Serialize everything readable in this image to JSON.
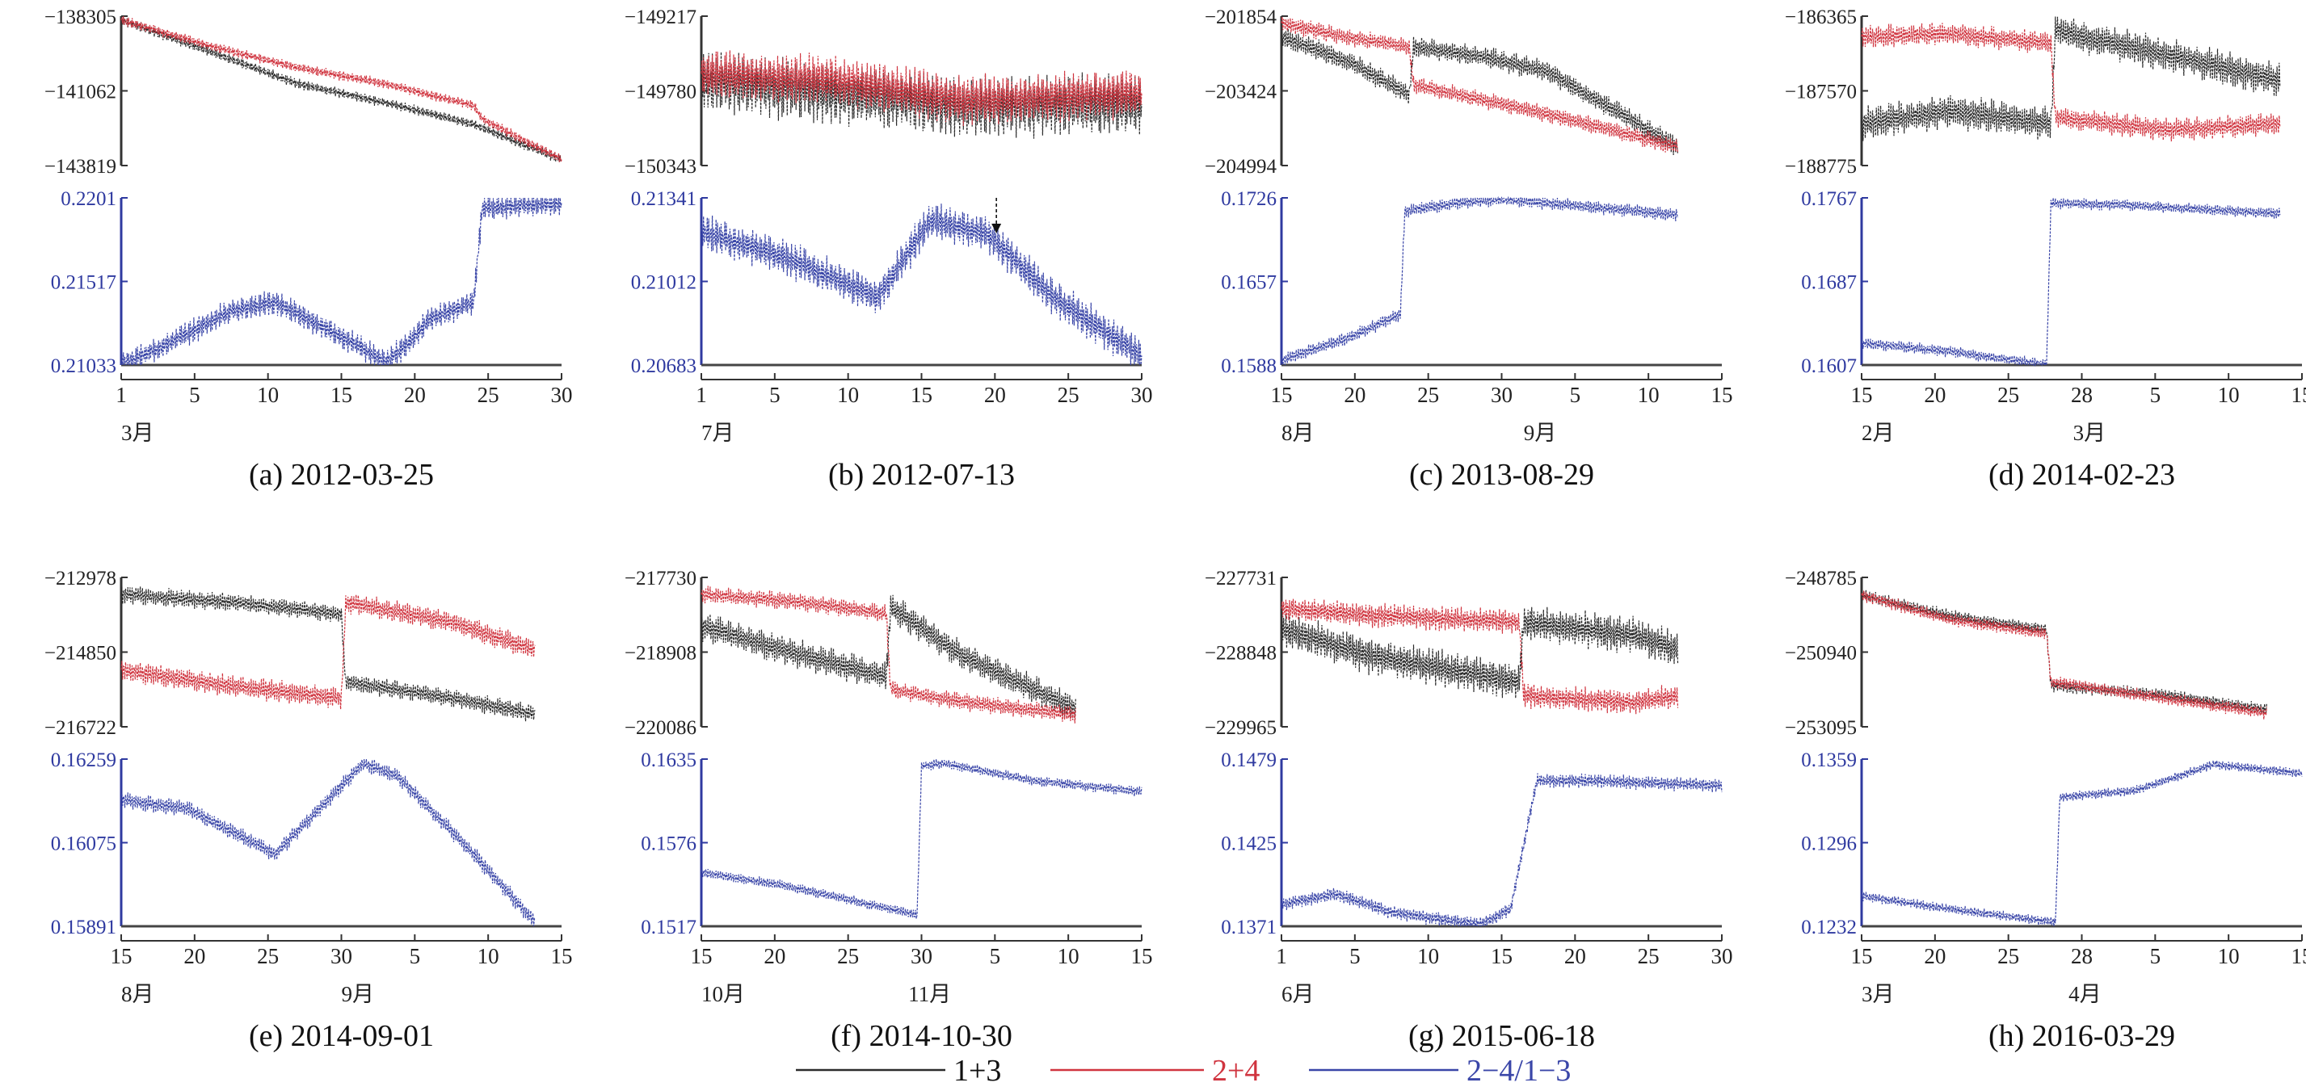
{
  "colors": {
    "c13": "#2b2b2b",
    "c24": "#d0343f",
    "ratio": "#3a46a8",
    "axis": "#333333",
    "ratio_axis": "#2f3aa0"
  },
  "legend": [
    {
      "key": "c13",
      "label": "1+3"
    },
    {
      "key": "c24",
      "label": "2+4"
    },
    {
      "key": "ratio",
      "label": "2−4/1−3"
    }
  ],
  "chart_data": [
    {
      "type": "line",
      "caption": "(a) 2012-03-25",
      "x_ticks": [
        "1",
        "5",
        "10",
        "15",
        "20",
        "25",
        "30"
      ],
      "month_labels": [
        {
          "at": 0,
          "text": "3月"
        }
      ],
      "top_axis_ticks": [
        "−138305",
        "−141062",
        "−143819"
      ],
      "top_ylim": [
        -143819,
        -138305
      ],
      "bottom_axis_ticks": [
        "0.2201",
        "0.21517",
        "0.21033"
      ],
      "bottom_ylim": [
        0.21033,
        0.2201
      ],
      "events": [],
      "series": [
        {
          "key": "c13",
          "x": [
            0,
            20,
            40,
            60,
            80,
            100
          ],
          "y": [
            -138450,
            -139600,
            -140800,
            -141500,
            -142300,
            -143600
          ],
          "jitter": 200,
          "period": 1.2
        },
        {
          "key": "c24",
          "x": [
            0,
            20,
            40,
            60,
            80,
            82,
            100
          ],
          "y": [
            -138450,
            -139400,
            -140200,
            -140800,
            -141600,
            -142100,
            -143600
          ],
          "jitter": 200,
          "period": 1.2
        },
        {
          "key": "ratio",
          "x": [
            0,
            10,
            25,
            35,
            50,
            60,
            65,
            70,
            80,
            82,
            100
          ],
          "y": [
            0.21033,
            0.2115,
            0.2135,
            0.214,
            0.212,
            0.2105,
            0.2115,
            0.213,
            0.214,
            0.2195,
            0.2198
          ],
          "jitter": 0.0008,
          "period": 1.2
        }
      ]
    },
    {
      "type": "line",
      "caption": "(b) 2012-07-13",
      "x_ticks": [
        "1",
        "5",
        "10",
        "15",
        "20",
        "25",
        "30"
      ],
      "month_labels": [
        {
          "at": 0,
          "text": "7月"
        }
      ],
      "top_axis_ticks": [
        "−149217",
        "−149780",
        "−150343"
      ],
      "top_ylim": [
        -150343,
        -149217
      ],
      "bottom_axis_ticks": [
        "0.21341",
        "0.21012",
        "0.20683"
      ],
      "bottom_ylim": [
        0.20683,
        0.21341
      ],
      "events": [
        {
          "at": 67,
          "type": "arrow"
        }
      ],
      "series": [
        {
          "key": "c13",
          "x": [
            0,
            30,
            60,
            100
          ],
          "y": [
            -149700,
            -149800,
            -149900,
            -149880
          ],
          "jitter": 250,
          "period": 1.2
        },
        {
          "key": "c24",
          "x": [
            0,
            30,
            60,
            100
          ],
          "y": [
            -149650,
            -149700,
            -149850,
            -149800
          ],
          "jitter": 200,
          "period": 1.2
        },
        {
          "key": "ratio",
          "x": [
            0,
            20,
            40,
            52,
            65,
            80,
            100
          ],
          "y": [
            0.2121,
            0.211,
            0.2095,
            0.2125,
            0.212,
            0.2095,
            0.2072
          ],
          "jitter": 0.0008,
          "period": 1.2
        }
      ]
    },
    {
      "type": "line",
      "caption": "(c) 2013-08-29",
      "x_ticks": [
        "15",
        "20",
        "25",
        "30",
        "5",
        "10",
        "15"
      ],
      "month_labels": [
        {
          "at": 0,
          "text": "8月"
        },
        {
          "at": 55,
          "text": "9月"
        }
      ],
      "top_axis_ticks": [
        "−201854",
        "−203424",
        "−204994"
      ],
      "top_ylim": [
        -204994,
        -201854
      ],
      "bottom_axis_ticks": [
        "0.1726",
        "0.1657",
        "0.1588"
      ],
      "bottom_ylim": [
        0.1588,
        0.1726
      ],
      "events": [],
      "series": [
        {
          "key": "c13",
          "x": [
            0,
            15,
            29,
            30,
            45,
            60,
            90
          ],
          "y": [
            -202300,
            -202800,
            -203500,
            -202500,
            -202700,
            -203000,
            -204600
          ],
          "jitter": 250,
          "period": 1.4
        },
        {
          "key": "c24",
          "x": [
            0,
            15,
            29,
            30,
            60,
            90
          ],
          "y": [
            -202000,
            -202300,
            -202500,
            -203300,
            -203900,
            -204600
          ],
          "jitter": 200,
          "period": 1.4
        },
        {
          "key": "ratio",
          "x": [
            0,
            15,
            27,
            28,
            40,
            50,
            90
          ],
          "y": [
            0.1592,
            0.161,
            0.163,
            0.1715,
            0.1722,
            0.1725,
            0.1712
          ],
          "jitter": 0.0006,
          "period": 1.4
        }
      ]
    },
    {
      "type": "line",
      "caption": "(d) 2014-02-23",
      "x_ticks": [
        "15",
        "20",
        "25",
        "28",
        "5",
        "10",
        "15"
      ],
      "month_labels": [
        {
          "at": 0,
          "text": "2月"
        },
        {
          "at": 48,
          "text": "3月"
        }
      ],
      "top_axis_ticks": [
        "−186365",
        "−187570",
        "−188775"
      ],
      "top_ylim": [
        -188775,
        -186365
      ],
      "bottom_axis_ticks": [
        "0.1767",
        "0.1687",
        "0.1607"
      ],
      "bottom_ylim": [
        0.1607,
        0.1767
      ],
      "events": [],
      "series": [
        {
          "key": "c13",
          "x": [
            0,
            20,
            43,
            44,
            70,
            95
          ],
          "y": [
            -188100,
            -187900,
            -188100,
            -186600,
            -187000,
            -187400
          ],
          "jitter": 300,
          "period": 1.4
        },
        {
          "key": "c24",
          "x": [
            0,
            20,
            43,
            44,
            70,
            95
          ],
          "y": [
            -186700,
            -186650,
            -186800,
            -188000,
            -188200,
            -188100
          ],
          "jitter": 200,
          "period": 1.4
        },
        {
          "key": "ratio",
          "x": [
            0,
            20,
            42,
            43,
            60,
            95
          ],
          "y": [
            0.1628,
            0.162,
            0.1607,
            0.1762,
            0.176,
            0.1752
          ],
          "jitter": 0.0006,
          "period": 1.4
        }
      ]
    },
    {
      "type": "line",
      "caption": "(e) 2014-09-01",
      "x_ticks": [
        "15",
        "20",
        "25",
        "30",
        "5",
        "10",
        "15"
      ],
      "month_labels": [
        {
          "at": 0,
          "text": "8月"
        },
        {
          "at": 50,
          "text": "9月"
        }
      ],
      "top_axis_ticks": [
        "−212978",
        "−214850",
        "−216722"
      ],
      "top_ylim": [
        -216722,
        -212978
      ],
      "bottom_axis_ticks": [
        "0.16259",
        "0.16075",
        "0.15891"
      ],
      "bottom_ylim": [
        0.15891,
        0.16259
      ],
      "events": [],
      "series": [
        {
          "key": "c13",
          "x": [
            0,
            25,
            50,
            51,
            75,
            94
          ],
          "y": [
            -213400,
            -213600,
            -213900,
            -215600,
            -216000,
            -216400
          ],
          "jitter": 250,
          "period": 1.4
        },
        {
          "key": "c24",
          "x": [
            0,
            25,
            50,
            51,
            75,
            94
          ],
          "y": [
            -215300,
            -215700,
            -216000,
            -213600,
            -214100,
            -214800
          ],
          "jitter": 300,
          "period": 1.4
        },
        {
          "key": "ratio",
          "x": [
            0,
            15,
            35,
            45,
            55,
            63,
            80,
            94
          ],
          "y": [
            0.1617,
            0.1615,
            0.1605,
            0.1615,
            0.1625,
            0.1622,
            0.1605,
            0.159
          ],
          "jitter": 0.0002,
          "period": 1.4
        }
      ]
    },
    {
      "type": "line",
      "caption": "(f) 2014-10-30",
      "x_ticks": [
        "15",
        "20",
        "25",
        "30",
        "5",
        "10",
        "15"
      ],
      "month_labels": [
        {
          "at": 0,
          "text": "10月"
        },
        {
          "at": 47,
          "text": "11月"
        }
      ],
      "top_axis_ticks": [
        "−217730",
        "−218908",
        "−220086"
      ],
      "top_ylim": [
        -220086,
        -217730
      ],
      "bottom_axis_ticks": [
        "0.1635",
        "0.1576",
        "0.1517"
      ],
      "bottom_ylim": [
        0.1517,
        0.1635
      ],
      "events": [],
      "series": [
        {
          "key": "c13",
          "x": [
            0,
            20,
            42,
            43,
            60,
            85
          ],
          "y": [
            -218500,
            -218900,
            -219300,
            -218200,
            -219000,
            -219800
          ],
          "jitter": 250,
          "period": 1.4
        },
        {
          "key": "c24",
          "x": [
            0,
            20,
            42,
            43,
            60,
            85
          ],
          "y": [
            -218000,
            -218100,
            -218300,
            -219500,
            -219700,
            -219900
          ],
          "jitter": 150,
          "period": 1.4
        },
        {
          "key": "ratio",
          "x": [
            0,
            20,
            49,
            50,
            55,
            75,
            100
          ],
          "y": [
            0.1555,
            0.1545,
            0.1525,
            0.163,
            0.1632,
            0.162,
            0.1612
          ],
          "jitter": 0.0004,
          "period": 1.4
        }
      ]
    },
    {
      "type": "line",
      "caption": "(g) 2015-06-18",
      "x_ticks": [
        "1",
        "5",
        "10",
        "15",
        "20",
        "25",
        "30"
      ],
      "month_labels": [
        {
          "at": 0,
          "text": "6月"
        }
      ],
      "top_axis_ticks": [
        "−227731",
        "−228848",
        "−229965"
      ],
      "top_ylim": [
        -229965,
        -227731
      ],
      "bottom_axis_ticks": [
        "0.1479",
        "0.1425",
        "0.1371"
      ],
      "bottom_ylim": [
        0.1371,
        0.1479
      ],
      "events": [],
      "series": [
        {
          "key": "c13",
          "x": [
            0,
            20,
            54,
            55,
            80,
            90
          ],
          "y": [
            -228500,
            -228900,
            -229300,
            -228400,
            -228600,
            -228800
          ],
          "jitter": 300,
          "period": 1.3
        },
        {
          "key": "c24",
          "x": [
            0,
            20,
            54,
            55,
            80,
            90
          ],
          "y": [
            -228200,
            -228300,
            -228400,
            -229500,
            -229600,
            -229500
          ],
          "jitter": 200,
          "period": 1.3
        },
        {
          "key": "ratio",
          "x": [
            0,
            12,
            25,
            45,
            52,
            58,
            70,
            100
          ],
          "y": [
            0.1385,
            0.1392,
            0.138,
            0.1372,
            0.1382,
            0.1465,
            0.1465,
            0.1462
          ],
          "jitter": 0.0005,
          "period": 1.3
        }
      ]
    },
    {
      "type": "line",
      "caption": "(h) 2016-03-29",
      "x_ticks": [
        "15",
        "20",
        "25",
        "28",
        "5",
        "10",
        "15"
      ],
      "month_labels": [
        {
          "at": 0,
          "text": "3月"
        },
        {
          "at": 47,
          "text": "4月"
        }
      ],
      "top_axis_ticks": [
        "−248785",
        "−250940",
        "−253095"
      ],
      "top_ylim": [
        -253095,
        -248785
      ],
      "bottom_axis_ticks": [
        "0.1359",
        "0.1296",
        "0.1232"
      ],
      "bottom_ylim": [
        0.1232,
        0.1359
      ],
      "events": [],
      "series": [
        {
          "key": "c13",
          "x": [
            0,
            20,
            42,
            43,
            70,
            92
          ],
          "y": [
            -249300,
            -249900,
            -250300,
            -251900,
            -252200,
            -252600
          ],
          "jitter": 200,
          "period": 1.3
        },
        {
          "key": "c24",
          "x": [
            0,
            20,
            42,
            43,
            70,
            92
          ],
          "y": [
            -249300,
            -250000,
            -250400,
            -251800,
            -252300,
            -252700
          ],
          "jitter": 200,
          "period": 1.3
        },
        {
          "key": "ratio",
          "x": [
            0,
            20,
            44,
            45,
            62,
            80,
            100
          ],
          "y": [
            0.1255,
            0.1245,
            0.1235,
            0.133,
            0.1335,
            0.1355,
            0.1348
          ],
          "jitter": 0.0004,
          "period": 1.3
        }
      ]
    }
  ]
}
